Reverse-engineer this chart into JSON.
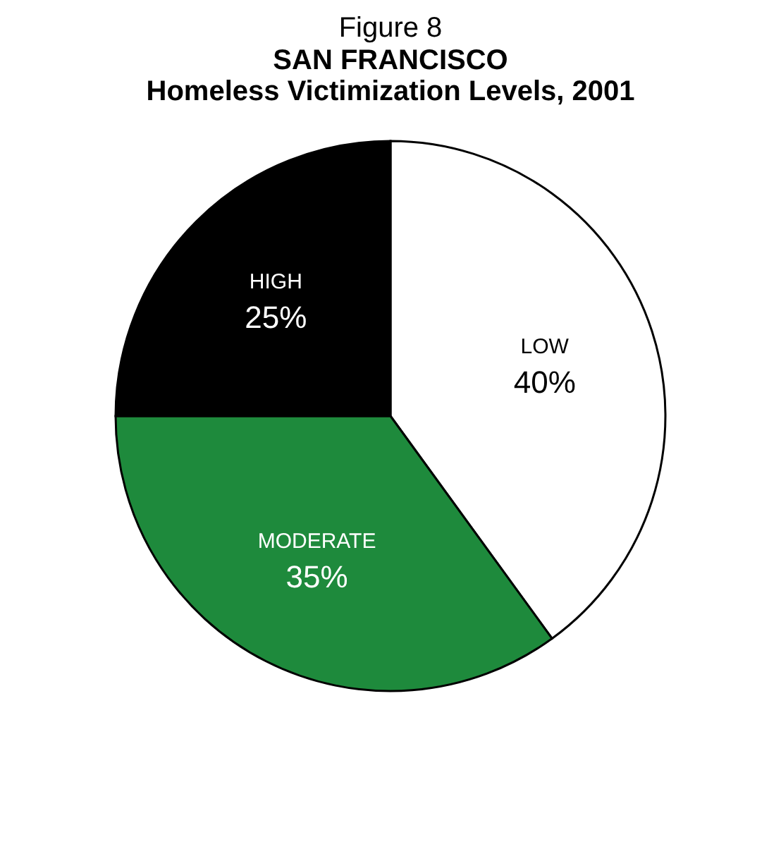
{
  "chart_data": {
    "type": "pie",
    "title": "Figure 8",
    "subtitle": "SAN FRANCISCO\nHomeless Victimization Levels, 2001",
    "categories": [
      "LOW",
      "MODERATE",
      "HIGH"
    ],
    "values": [
      40,
      35,
      25
    ],
    "value_labels": [
      "40%",
      "35%",
      "25%"
    ],
    "colors": [
      "#ffffff",
      "#1e8a3c",
      "#000000"
    ],
    "legend": false
  }
}
